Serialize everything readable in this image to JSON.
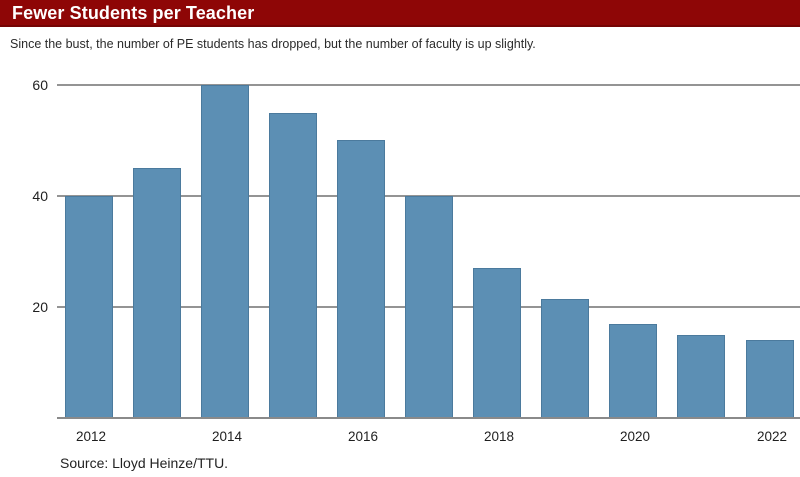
{
  "header": {
    "title": "Fewer Students per Teacher",
    "bg_color": "#8e0606",
    "text_color": "#ffffff"
  },
  "subtitle": "Since the bust, the number of PE students has dropped, but the number of faculty is up slightly.",
  "source": "Source: Lloyd Heinze/TTU.",
  "chart_data": {
    "type": "bar",
    "title": "Fewer Students per Teacher",
    "subtitle": "Since the bust, the number of PE students has dropped, but the number of faculty is up slightly.",
    "categories": [
      2012,
      2013,
      2014,
      2015,
      2016,
      2017,
      2018,
      2019,
      2020,
      2021,
      2022
    ],
    "values": [
      40,
      45,
      60,
      55,
      50,
      40,
      27,
      21.5,
      17,
      15,
      14
    ],
    "xlabel": "",
    "ylabel": "",
    "ylim": [
      0,
      60
    ],
    "yticks": [
      20,
      40,
      60
    ],
    "xtick_labels": [
      "2012",
      "2014",
      "2016",
      "2018",
      "2020",
      "2022"
    ],
    "bar_color": "#5c8fb4",
    "gridline_color": "#949494",
    "grid": true,
    "legend": false,
    "source": "Source: Lloyd Heinze/TTU."
  }
}
